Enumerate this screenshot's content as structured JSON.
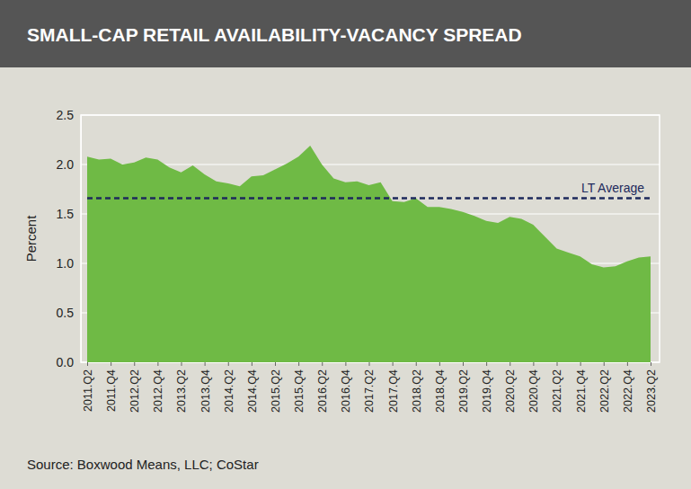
{
  "chart_data": {
    "type": "area",
    "title": "SMALL-CAP RETAIL AVAILABILITY-VACANCY SPREAD",
    "y_label": "Percent",
    "source": "Source: Boxwood Means, LLC; CoStar",
    "color": "#6fba45",
    "grid": true,
    "categories": [
      "2011.Q2",
      null,
      "2011.Q4",
      null,
      "2012.Q2",
      null,
      "2012.Q4",
      null,
      "2013.Q2",
      null,
      "2013.Q4",
      null,
      "2014.Q2",
      null,
      "2014.Q4",
      null,
      "2015.Q2",
      null,
      "2015.Q4",
      null,
      "2016.Q2",
      null,
      "2016.Q4",
      null,
      "2017.Q2",
      null,
      "2017.Q4",
      null,
      "2018.Q2",
      null,
      "2018.Q4",
      null,
      "2019.Q2",
      null,
      "2019.Q4",
      null,
      "2020.Q2",
      null,
      "2020.Q4",
      null,
      "2021.Q2",
      null,
      "2021.Q4",
      null,
      "2022.Q2",
      null,
      "2022.Q4",
      null,
      "2023.Q2"
    ],
    "values": [
      2.08,
      2.05,
      2.06,
      2.0,
      2.02,
      2.07,
      2.05,
      1.97,
      1.92,
      1.99,
      1.9,
      1.83,
      1.81,
      1.78,
      1.88,
      1.89,
      1.95,
      2.01,
      2.08,
      2.19,
      2.0,
      1.86,
      1.82,
      1.83,
      1.79,
      1.82,
      1.63,
      1.62,
      1.66,
      1.57,
      1.57,
      1.55,
      1.52,
      1.48,
      1.43,
      1.41,
      1.47,
      1.45,
      1.39,
      1.27,
      1.15,
      1.11,
      1.07,
      0.99,
      0.96,
      0.97,
      1.02,
      1.06,
      1.07
    ],
    "ylim": [
      0,
      2.5
    ],
    "yticks": [
      {
        "value": 0,
        "label": "0.0"
      },
      0.5,
      {
        "value": 1,
        "label": "1.0"
      },
      1.5,
      {
        "value": 2,
        "label": "2.0"
      },
      2.5
    ],
    "reference_lines": [
      {
        "label": "LT Average",
        "value": 1.66
      }
    ]
  }
}
